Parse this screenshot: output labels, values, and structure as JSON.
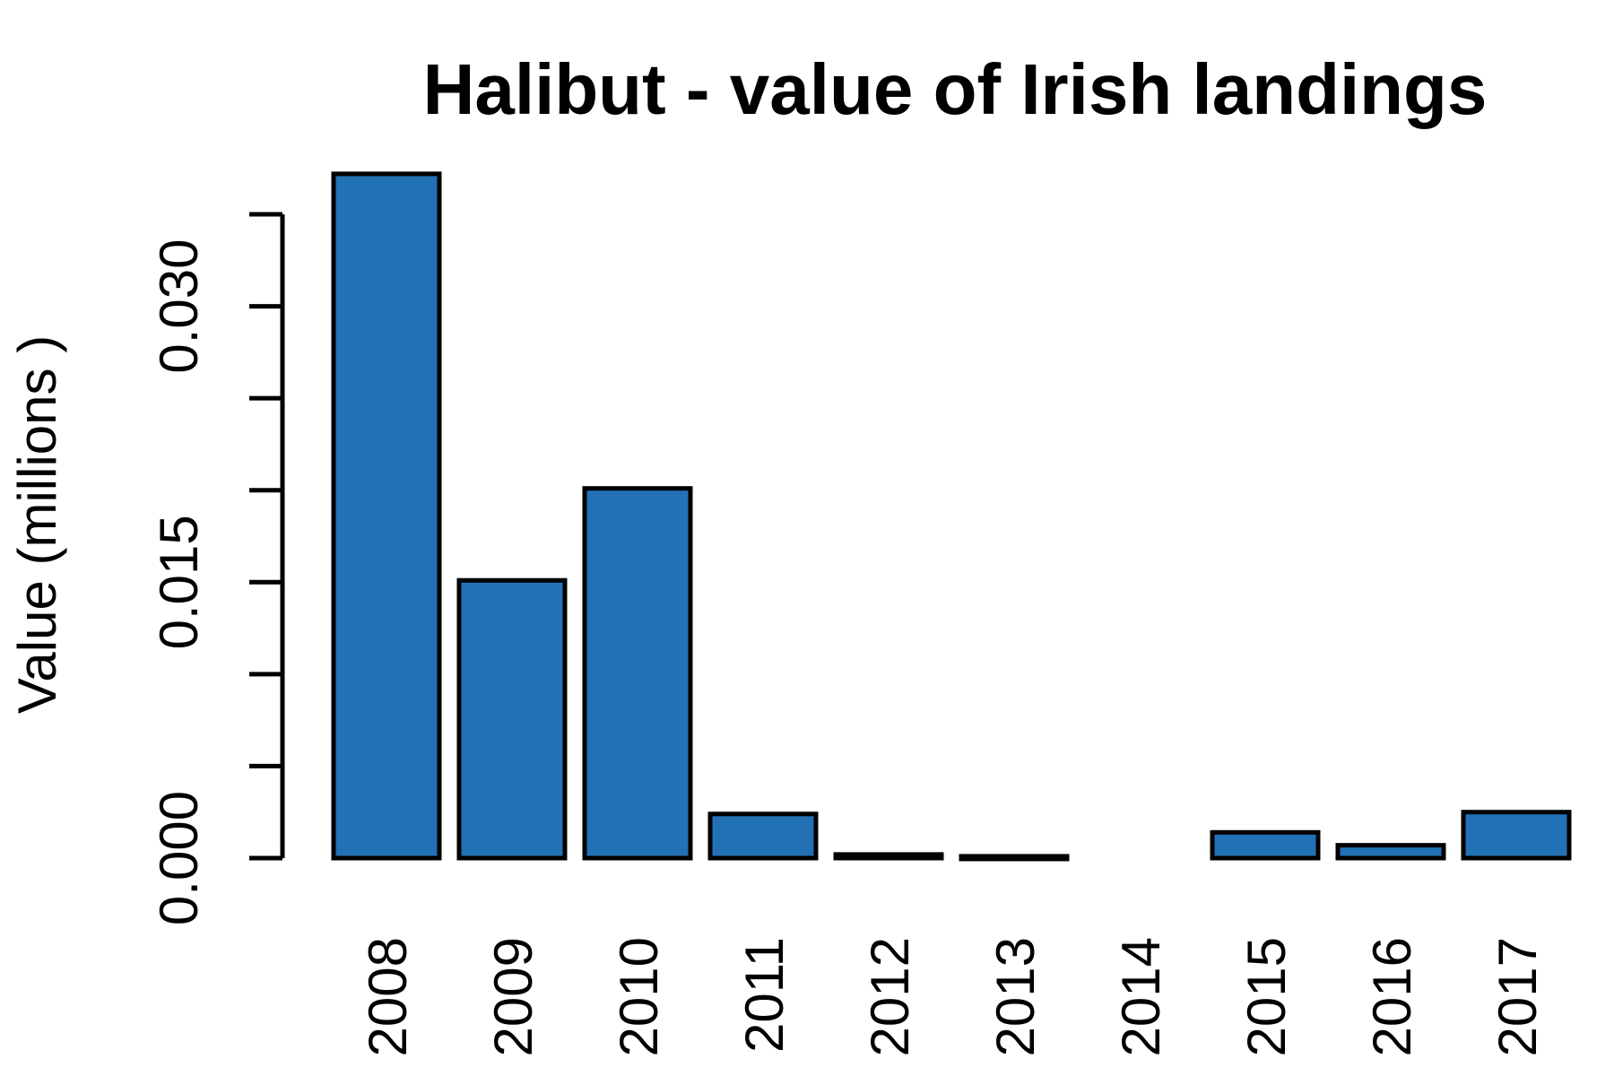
{
  "chart_data": {
    "type": "bar",
    "title": "Halibut - value of Irish landings",
    "xlabel": "",
    "ylabel": "Value (millions )",
    "categories": [
      "2008",
      "2009",
      "2010",
      "2011",
      "2012",
      "2013",
      "2014",
      "2015",
      "2016",
      "2017"
    ],
    "values": [
      0.0372,
      0.0151,
      0.0201,
      0.0024,
      0.0002,
      0.0001,
      0,
      0.0014,
      0.0007,
      0.0025
    ],
    "ylim": [
      0,
      0.035
    ],
    "y_ticks": [
      0,
      0.005,
      0.01,
      0.015,
      0.02,
      0.025,
      0.03,
      0.035
    ],
    "y_tick_labels": [
      "0.000",
      "",
      "",
      "0.015",
      "",
      "",
      "0.030",
      ""
    ],
    "bar_color": "#2271b5",
    "grid": false,
    "legend": "none"
  }
}
